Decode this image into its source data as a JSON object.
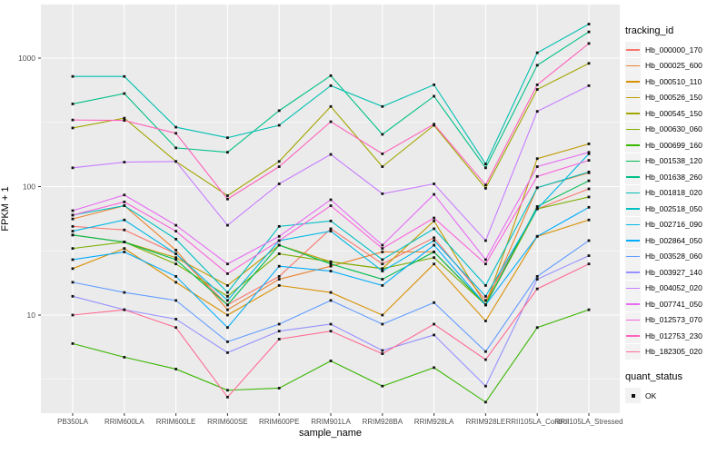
{
  "chart_data": {
    "type": "line",
    "title": "",
    "xlabel": "sample_name",
    "ylabel": "FPKM + 1",
    "yscale": "log10",
    "ylim": [
      1.7,
      2300
    ],
    "y_ticks": [
      10,
      100,
      1000
    ],
    "y_minor_ticks": [
      3.162,
      31.62,
      316.2
    ],
    "grid": "white major+minor on grey panel",
    "legend_position": "right",
    "point_marker": "small black square",
    "categories": [
      "PB350LA",
      "RRIM600LA",
      "RRIM600LE",
      "RRIM600SE",
      "RRIM600PE",
      "RRIM901LA",
      "RRIM928BA",
      "RRIM928LA",
      "RRIM928LE",
      "RRII105LA_Control",
      "RRII105LA_Stressed"
    ],
    "series": [
      {
        "name": "Hb_000000_170",
        "color": "#F8766D",
        "values": [
          49,
          46,
          30,
          12,
          20,
          47,
          25,
          40,
          13,
          67,
          96
        ]
      },
      {
        "name": "Hb_000025_600",
        "color": "#EA8331",
        "values": [
          56,
          71,
          32,
          11,
          19,
          24,
          31,
          31,
          12,
          98,
          128
        ]
      },
      {
        "name": "Hb_000510_110",
        "color": "#D89000",
        "values": [
          23,
          33,
          18,
          10,
          17,
          15,
          10,
          25,
          9,
          41,
          55
        ]
      },
      {
        "name": "Hb_000526_150",
        "color": "#C09B00",
        "values": [
          42,
          37,
          28,
          17,
          35,
          26,
          23,
          54,
          12,
          165,
          215
        ]
      },
      {
        "name": "Hb_000545_150",
        "color": "#A3A500",
        "values": [
          286,
          341,
          157,
          85,
          157,
          420,
          143,
          300,
          97,
          570,
          910
        ]
      },
      {
        "name": "Hb_000630_060",
        "color": "#7CAE00",
        "values": [
          33,
          37,
          25,
          14,
          30,
          26,
          23,
          28,
          12,
          67,
          83
        ]
      },
      {
        "name": "Hb_000699_160",
        "color": "#39B600",
        "values": [
          6,
          4.7,
          3.8,
          2.6,
          2.7,
          4.4,
          2.8,
          3.9,
          2.1,
          8,
          11
        ]
      },
      {
        "name": "Hb_001538_120",
        "color": "#00BB4E",
        "values": [
          42,
          37,
          27,
          12,
          35,
          25,
          19,
          31,
          12,
          70,
          111
        ]
      },
      {
        "name": "Hb_001638_260",
        "color": "#00C087",
        "values": [
          440,
          530,
          200,
          185,
          390,
          730,
          255,
          505,
          140,
          880,
          1600
        ]
      },
      {
        "name": "Hb_001818_020",
        "color": "#00C0B2",
        "values": [
          720,
          720,
          290,
          240,
          300,
          610,
          420,
          620,
          150,
          1100,
          1840
        ]
      },
      {
        "name": "Hb_002518_050",
        "color": "#00BFC4",
        "values": [
          60,
          71,
          39,
          15,
          49,
          54,
          27,
          47,
          17,
          98,
          130
        ]
      },
      {
        "name": "Hb_002716_090",
        "color": "#00B8E5",
        "values": [
          45,
          55,
          30,
          13,
          38,
          45,
          22,
          38,
          14,
          67,
          180
        ]
      },
      {
        "name": "Hb_002864_050",
        "color": "#00ACFC",
        "values": [
          27,
          31,
          20,
          8,
          24,
          22,
          17,
          35,
          12,
          41,
          69
        ]
      },
      {
        "name": "Hb_003528_060",
        "color": "#619CFF",
        "values": [
          18,
          15,
          13,
          6.2,
          8.5,
          13,
          8.5,
          12.5,
          5.2,
          20,
          38
        ]
      },
      {
        "name": "Hb_003927_140",
        "color": "#9590FF",
        "values": [
          14,
          11,
          9.3,
          5.1,
          7.5,
          8.5,
          5.3,
          7,
          2.8,
          19,
          29
        ]
      },
      {
        "name": "Hb_004052_020",
        "color": "#C77CFF",
        "values": [
          140,
          155,
          157,
          50,
          105,
          178,
          88,
          105,
          38,
          385,
          610
        ]
      },
      {
        "name": "Hb_007741_050",
        "color": "#E76BF3",
        "values": [
          65,
          86,
          50,
          25,
          41,
          79,
          35,
          87,
          27,
          143,
          185
        ]
      },
      {
        "name": "Hb_012573_070",
        "color": "#FA62DB",
        "values": [
          60,
          76,
          45,
          21,
          38,
          71,
          33,
          57,
          25,
          120,
          160
        ]
      },
      {
        "name": "Hb_012753_230",
        "color": "#FF62BC",
        "values": [
          330,
          327,
          260,
          80,
          143,
          320,
          180,
          306,
          103,
          620,
          1300
        ]
      },
      {
        "name": "Hb_182305_020",
        "color": "#FF6B94",
        "values": [
          10,
          11,
          8,
          2.3,
          6.5,
          7.5,
          5,
          8.5,
          4.5,
          16,
          25
        ]
      }
    ]
  },
  "legend": {
    "tracking_title": "tracking_id",
    "quant_title": "quant_status",
    "quant_items": [
      {
        "label": "OK"
      }
    ]
  },
  "colors": {
    "panel_bg": "#EBEBEB",
    "grid": "#FFFFFF",
    "tick_label": "#4D4D4D",
    "tick_mark": "#333333",
    "point": "#111111",
    "legend_key_bg": "#F2F2F2"
  }
}
